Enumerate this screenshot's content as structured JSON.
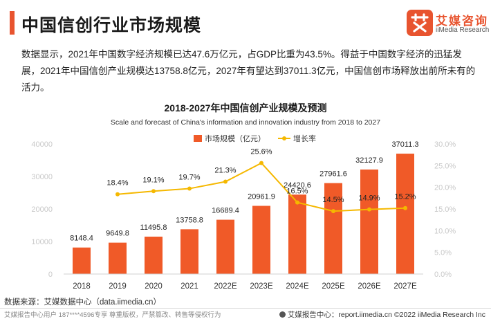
{
  "page": {
    "title": "中国信创行业市场规模",
    "description": "数据显示，2021年中国数字经济规模已达47.6万亿元，占GDP比重为43.5%。得益于中国数字经济的迅猛发展，2021年中国信创产业规模达13758.8亿元，2027年有望达到37011.3亿元，中国信创市场释放出前所未有的活力。",
    "source": "数据来源：艾媒数据中心（data.iimedia.cn）",
    "footer_left": "艾媒报告中心用户 187****4596专享 尊重版权，严禁篡改、转售等侵权行为",
    "footer_right": "艾媒报告中心：report.iimedia.cn   ©2022  iiMedia Research  Inc"
  },
  "logo": {
    "cn": "艾媒咨询",
    "en": "iiMedia Research",
    "icon": "iimedia-logo-icon"
  },
  "colors": {
    "accent": "#e8542f",
    "bar": "#f05a28",
    "line": "#f5b800",
    "axis_text": "#c8c8c8"
  },
  "chart_data": {
    "type": "bar",
    "title": "2018-2027年中国信创产业规模及预测",
    "subtitle": "Scale and forecast of China's information and innovation industry from 2018 to 2027",
    "categories": [
      "2018",
      "2019",
      "2020",
      "2021",
      "2022E",
      "2023E",
      "2024E",
      "2025E",
      "2026E",
      "2027E"
    ],
    "series": [
      {
        "name": "市场规模（亿元）",
        "type": "bar",
        "axis": "left",
        "values": [
          8148.4,
          9649.8,
          11495.8,
          13758.8,
          16689.4,
          20961.9,
          24420.6,
          27961.6,
          32127.9,
          37011.3
        ],
        "labels": [
          "8148.4",
          "9649.8",
          "11495.8",
          "13758.8",
          "16689.4",
          "20961.9",
          "24420.6",
          "27961.6",
          "32127.9",
          "37011.3"
        ]
      },
      {
        "name": "增长率",
        "type": "line",
        "axis": "right",
        "values": [
          null,
          18.4,
          19.1,
          19.7,
          21.3,
          25.6,
          16.5,
          14.5,
          14.9,
          15.2
        ],
        "labels": [
          "",
          "18.4%",
          "19.1%",
          "19.7%",
          "21.3%",
          "25.6%",
          "16.5%",
          "14.5%",
          "14.9%",
          "15.2%"
        ]
      }
    ],
    "y_left": {
      "min": 0,
      "max": 40000,
      "ticks": [
        "0",
        "10000",
        "20000",
        "30000",
        "40000"
      ]
    },
    "y_right": {
      "min": 0,
      "max": 30,
      "ticks": [
        "0.0%",
        "5.0%",
        "10.0%",
        "15.0%",
        "20.0%",
        "25.0%",
        "30.0%"
      ]
    },
    "legend_position": "top-center",
    "grid": false
  }
}
